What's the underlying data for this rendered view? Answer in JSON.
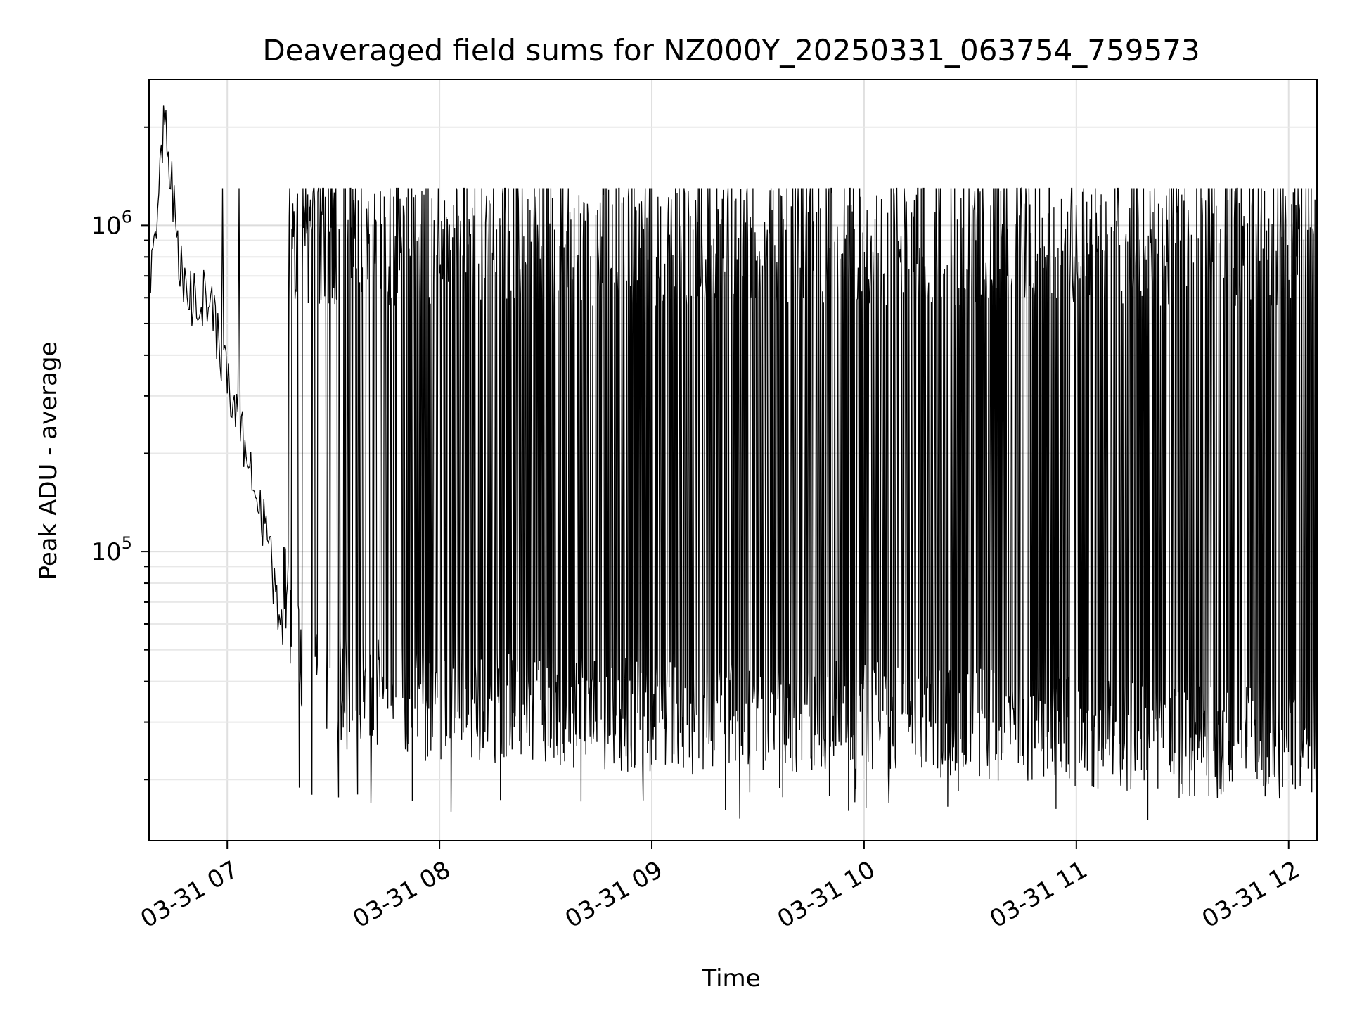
{
  "chart_data": {
    "type": "line",
    "title": "Deaveraged field sums for NZ000Y_20250331_063754_759573",
    "xlabel": "Time",
    "ylabel": "Peak ADU - average",
    "y_scale": "log",
    "ylim": [
      13000,
      2800000
    ],
    "xlim": [
      "2025-03-31T06:37:54",
      "2025-03-31T12:08:00"
    ],
    "x_ticks": [
      {
        "time": "2025-03-31T07:00:00",
        "label": "03-31 07"
      },
      {
        "time": "2025-03-31T08:00:00",
        "label": "03-31 08"
      },
      {
        "time": "2025-03-31T09:00:00",
        "label": "03-31 09"
      },
      {
        "time": "2025-03-31T10:00:00",
        "label": "03-31 10"
      },
      {
        "time": "2025-03-31T11:00:00",
        "label": "03-31 11"
      },
      {
        "time": "2025-03-31T12:00:00",
        "label": "03-31 12"
      }
    ],
    "y_ticks": [
      {
        "value": 100000,
        "base": "10",
        "exp": "5"
      },
      {
        "value": 1000000,
        "base": "10",
        "exp": "6"
      }
    ],
    "grid": true,
    "legend": "none",
    "line_color": "#000000",
    "series": [
      {
        "x": [
          "2025-03-31T06:38",
          "2025-03-31T06:40",
          "2025-03-31T06:42",
          "2025-03-31T06:44",
          "2025-03-31T06:46",
          "2025-03-31T06:48",
          "2025-03-31T06:50",
          "2025-03-31T06:52",
          "2025-03-31T06:54",
          "2025-03-31T06:56",
          "2025-03-31T06:58",
          "2025-03-31T07:00",
          "2025-03-31T07:03",
          "2025-03-31T07:06",
          "2025-03-31T07:09",
          "2025-03-31T07:12",
          "2025-03-31T07:15",
          "2025-03-31T07:18",
          "2025-03-31T07:21",
          "2025-03-31T07:24",
          "2025-03-31T07:27",
          "2025-03-31T07:30",
          "2025-03-31T07:40",
          "2025-03-31T07:50",
          "2025-03-31T08:00",
          "2025-03-31T08:20",
          "2025-03-31T08:40",
          "2025-03-31T09:00",
          "2025-03-31T09:30",
          "2025-03-31T10:00",
          "2025-03-31T10:30",
          "2025-03-31T11:00",
          "2025-03-31T11:30",
          "2025-03-31T12:00",
          "2025-03-31T12:08"
        ],
        "y": [
          700000,
          900000,
          2200000,
          1500000,
          800000,
          650000,
          600000,
          620000,
          580000,
          520000,
          420000,
          330000,
          250000,
          190000,
          140000,
          95000,
          65000,
          50000,
          38000,
          33000,
          30000,
          29000,
          28000,
          27000,
          26000,
          26000,
          25000,
          24000,
          24000,
          24000,
          23000,
          22000,
          20000,
          20000,
          21000
        ]
      }
    ],
    "oscillation": {
      "start": "2025-03-31T07:16:00",
      "end": "2025-03-31T12:08:00",
      "upper_envelope": 1000000,
      "lower_envelope": 25000,
      "min_value": 15000,
      "max_value": 1300000
    }
  }
}
